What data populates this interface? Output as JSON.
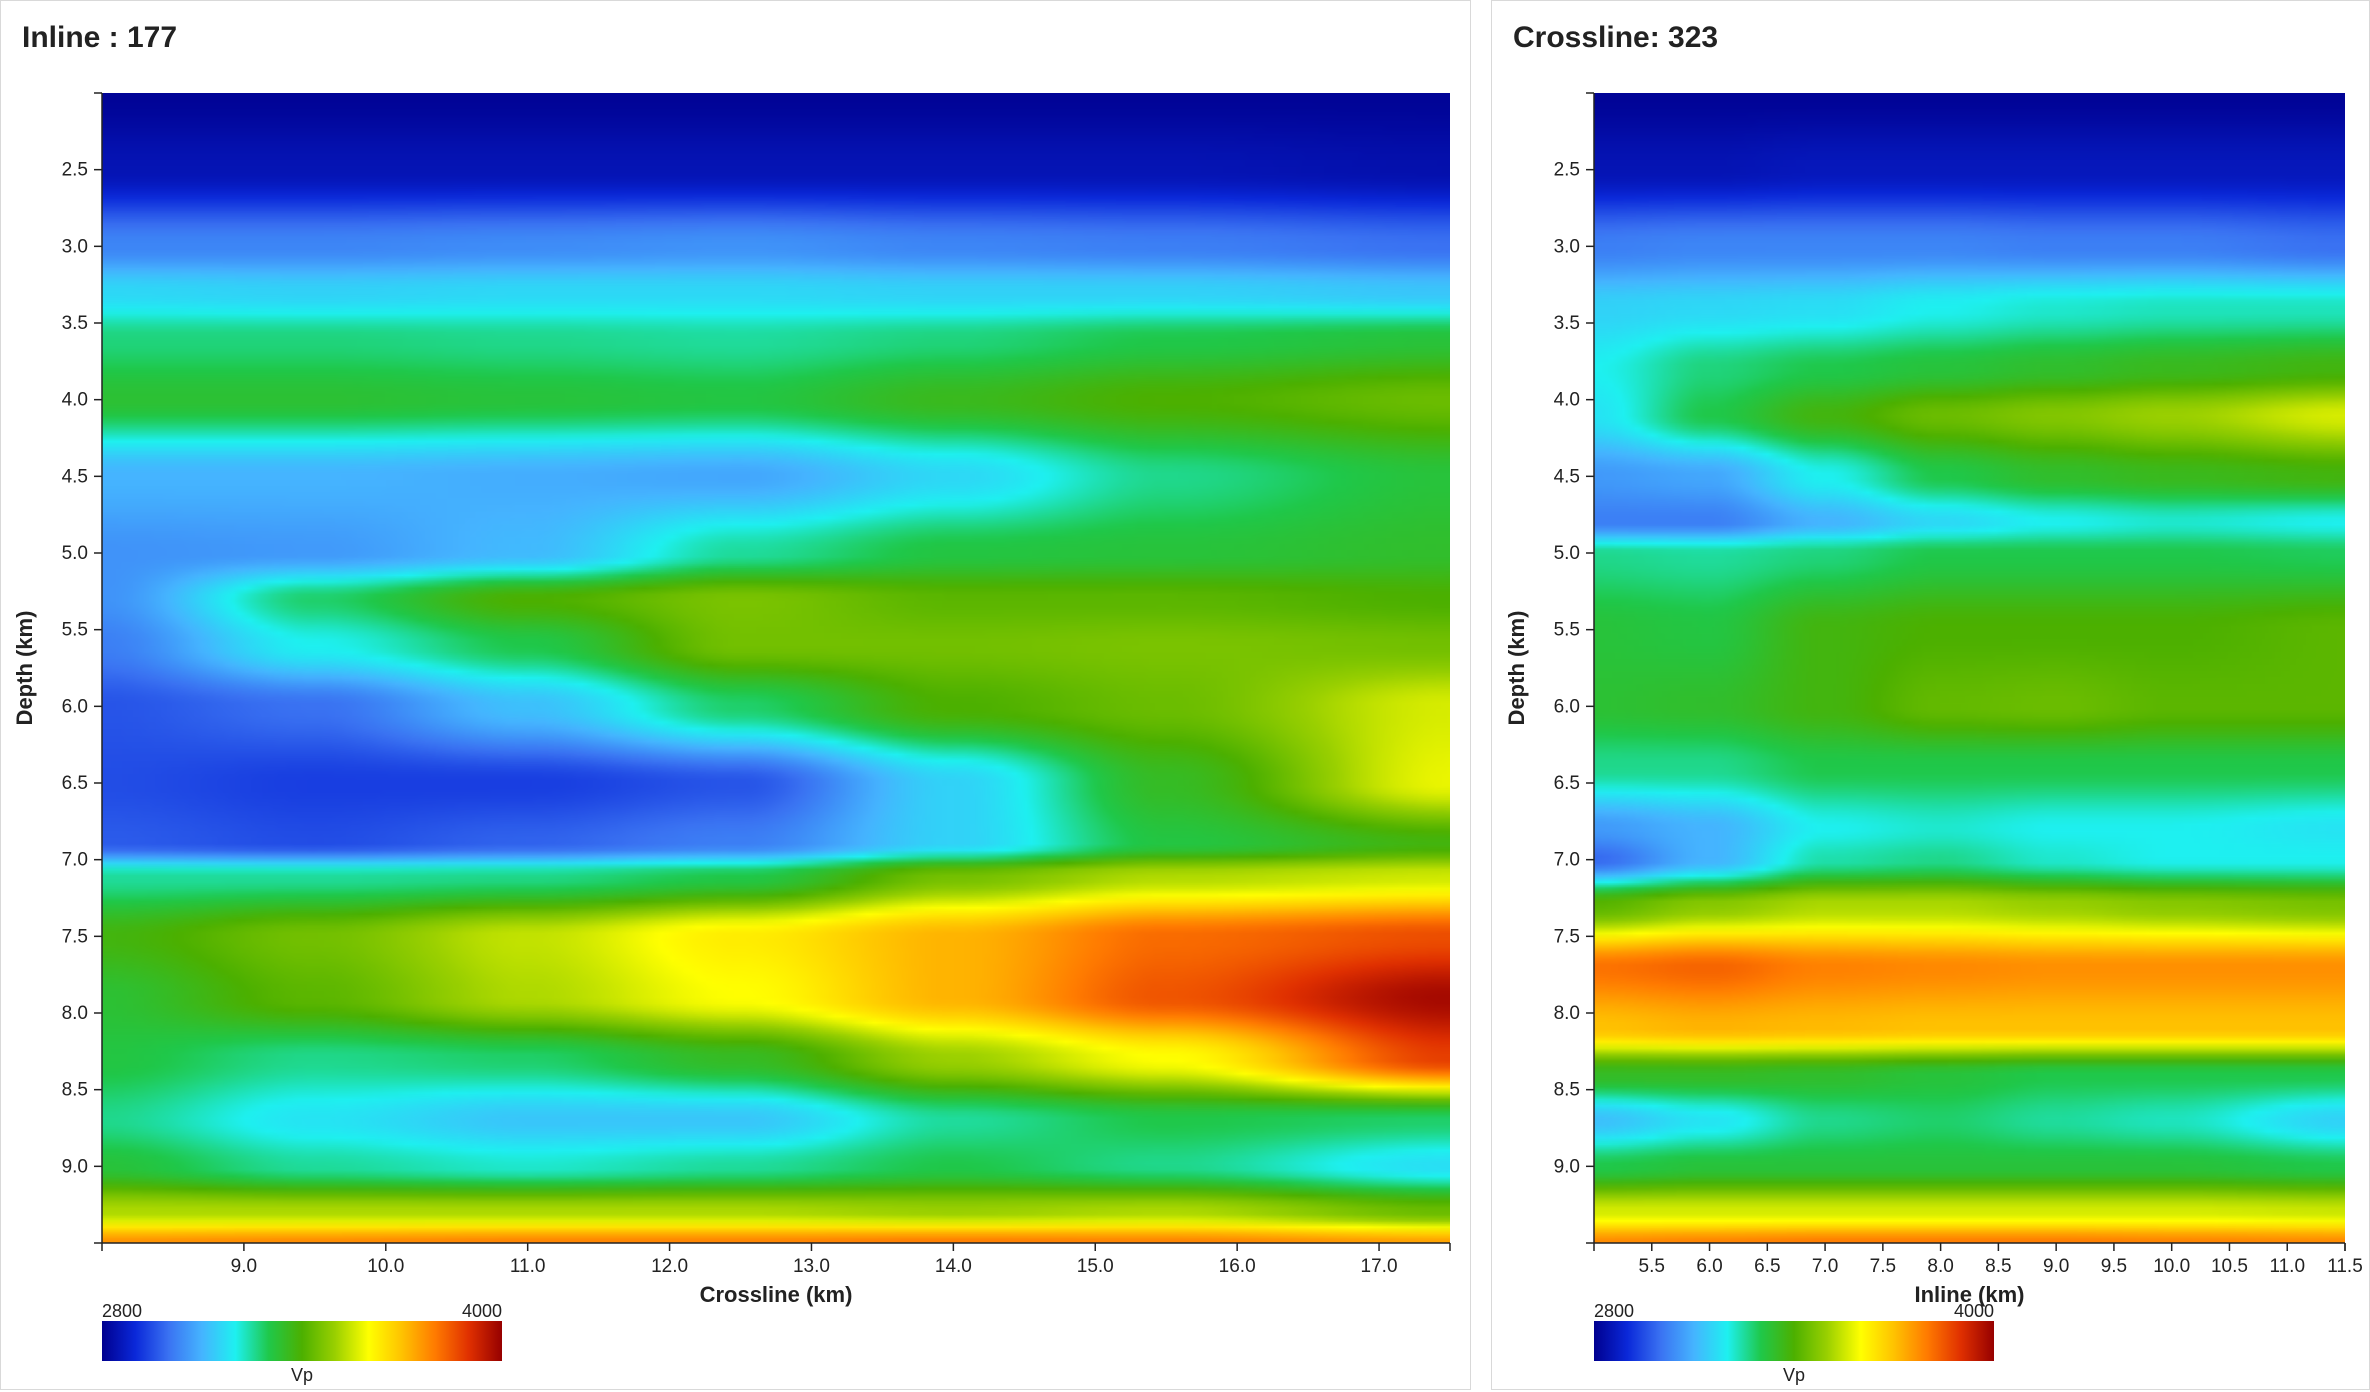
{
  "colorscale": {
    "vmin": 2800,
    "vmax": 4000,
    "min_label": "2800",
    "max_label": "4000",
    "label": "Vp",
    "stops": [
      "#00008f",
      "#0a28d9",
      "#3a72f2",
      "#45b4ff",
      "#1ef0f0",
      "#1fc84a",
      "#4cb000",
      "#9ad000",
      "#ffff00",
      "#ffc200",
      "#ff7a00",
      "#e03000",
      "#960000"
    ]
  },
  "chart_data": [
    {
      "type": "heatmap",
      "title": "Inline : 177",
      "xlabel": "Crossline (km)",
      "ylabel": "Depth (km)",
      "xlim": [
        8.0,
        17.5
      ],
      "ylim": [
        2.0,
        9.5
      ],
      "y_reversed": true,
      "x_ticks": [
        "9.0",
        "10.0",
        "11.0",
        "12.0",
        "13.0",
        "14.0",
        "15.0",
        "16.0",
        "17.0"
      ],
      "y_ticks": [
        "2.5",
        "3.0",
        "3.5",
        "4.0",
        "4.5",
        "5.0",
        "5.5",
        "6.0",
        "6.5",
        "7.0",
        "7.5",
        "8.0",
        "8.5",
        "9.0"
      ],
      "x_samples": [
        8.0,
        9.5,
        11.0,
        12.5,
        14.0,
        15.5,
        17.5
      ],
      "y_samples": [
        2.0,
        2.5,
        3.0,
        3.3,
        3.6,
        4.0,
        4.5,
        5.0,
        5.3,
        5.6,
        6.0,
        6.5,
        6.9,
        7.1,
        7.5,
        7.9,
        8.3,
        8.7,
        9.0,
        9.3,
        9.5
      ],
      "values": [
        [
          2810,
          2810,
          2810,
          2810,
          2810,
          2810,
          2810
        ],
        [
          2850,
          2850,
          2850,
          2850,
          2850,
          2850,
          2840
        ],
        [
          3030,
          3030,
          3040,
          3050,
          3030,
          3020,
          3000
        ],
        [
          3160,
          3150,
          3160,
          3160,
          3150,
          3150,
          3130
        ],
        [
          3270,
          3270,
          3260,
          3250,
          3270,
          3300,
          3320
        ],
        [
          3330,
          3330,
          3320,
          3310,
          3360,
          3400,
          3440
        ],
        [
          3100,
          3100,
          3090,
          3080,
          3160,
          3260,
          3320
        ],
        [
          3050,
          3060,
          3110,
          3250,
          3310,
          3320,
          3340
        ],
        [
          3050,
          3280,
          3400,
          3460,
          3420,
          3420,
          3400
        ],
        [
          3020,
          3200,
          3300,
          3450,
          3450,
          3460,
          3450
        ],
        [
          2960,
          3000,
          3120,
          3280,
          3400,
          3440,
          3560
        ],
        [
          2950,
          2930,
          2930,
          2960,
          3150,
          3350,
          3580
        ],
        [
          2970,
          2950,
          2980,
          3020,
          3150,
          3310,
          3380
        ],
        [
          3250,
          3250,
          3260,
          3300,
          3450,
          3520,
          3550
        ],
        [
          3380,
          3450,
          3540,
          3630,
          3720,
          3820,
          3860
        ],
        [
          3330,
          3420,
          3520,
          3600,
          3720,
          3850,
          3980
        ],
        [
          3310,
          3260,
          3280,
          3350,
          3500,
          3600,
          3880
        ],
        [
          3260,
          3180,
          3130,
          3130,
          3250,
          3300,
          3280
        ],
        [
          3320,
          3250,
          3220,
          3250,
          3300,
          3260,
          3170
        ],
        [
          3520,
          3520,
          3520,
          3520,
          3500,
          3520,
          3440
        ],
        [
          3770,
          3780,
          3790,
          3790,
          3800,
          3790,
          3750
        ]
      ]
    },
    {
      "type": "heatmap",
      "title": "Crossline: 323",
      "xlabel": "Inline (km)",
      "ylabel": "Depth (km)",
      "xlim": [
        5.0,
        11.5
      ],
      "ylim": [
        2.0,
        9.5
      ],
      "y_reversed": true,
      "x_ticks": [
        "5.5",
        "6.0",
        "6.5",
        "7.0",
        "7.5",
        "8.0",
        "8.5",
        "9.0",
        "9.5",
        "10.0",
        "10.5",
        "11.0",
        "11.5"
      ],
      "y_ticks": [
        "2.5",
        "3.0",
        "3.5",
        "4.0",
        "4.5",
        "5.0",
        "5.5",
        "6.0",
        "6.5",
        "7.0",
        "7.5",
        "8.0",
        "8.5",
        "9.0"
      ],
      "x_samples": [
        5.0,
        6.0,
        7.0,
        8.0,
        9.0,
        10.0,
        11.5
      ],
      "y_samples": [
        2.0,
        2.5,
        3.0,
        3.4,
        3.8,
        4.1,
        4.5,
        4.8,
        5.0,
        5.5,
        6.0,
        6.4,
        6.8,
        7.0,
        7.3,
        7.7,
        8.1,
        8.4,
        8.7,
        9.0,
        9.3,
        9.5
      ],
      "values": [
        [
          2810,
          2810,
          2810,
          2810,
          2810,
          2810,
          2810
        ],
        [
          2850,
          2850,
          2860,
          2860,
          2860,
          2860,
          2860
        ],
        [
          3020,
          3030,
          3030,
          3030,
          3020,
          3020,
          3000
        ],
        [
          3150,
          3160,
          3170,
          3200,
          3220,
          3230,
          3230
        ],
        [
          3200,
          3270,
          3300,
          3320,
          3340,
          3360,
          3380
        ],
        [
          3180,
          3300,
          3380,
          3440,
          3470,
          3500,
          3560
        ],
        [
          3060,
          3080,
          3200,
          3300,
          3340,
          3360,
          3380
        ],
        [
          3020,
          3020,
          3100,
          3160,
          3200,
          3220,
          3200
        ],
        [
          3260,
          3250,
          3270,
          3300,
          3300,
          3300,
          3290
        ],
        [
          3320,
          3310,
          3380,
          3400,
          3400,
          3400,
          3420
        ],
        [
          3330,
          3340,
          3380,
          3430,
          3440,
          3420,
          3420
        ],
        [
          3260,
          3260,
          3300,
          3300,
          3300,
          3300,
          3300
        ],
        [
          3060,
          3100,
          3200,
          3220,
          3200,
          3200,
          3180
        ],
        [
          2990,
          3100,
          3240,
          3260,
          3220,
          3200,
          3200
        ],
        [
          3420,
          3480,
          3520,
          3520,
          3500,
          3480,
          3460
        ],
        [
          3810,
          3830,
          3790,
          3780,
          3770,
          3770,
          3770
        ],
        [
          3700,
          3720,
          3710,
          3700,
          3700,
          3700,
          3700
        ],
        [
          3350,
          3350,
          3340,
          3320,
          3300,
          3300,
          3300
        ],
        [
          3120,
          3180,
          3260,
          3280,
          3250,
          3230,
          3150
        ],
        [
          3300,
          3320,
          3320,
          3320,
          3320,
          3320,
          3300
        ],
        [
          3560,
          3560,
          3560,
          3560,
          3560,
          3560,
          3550
        ],
        [
          3780,
          3790,
          3800,
          3800,
          3800,
          3790,
          3780
        ]
      ]
    }
  ]
}
